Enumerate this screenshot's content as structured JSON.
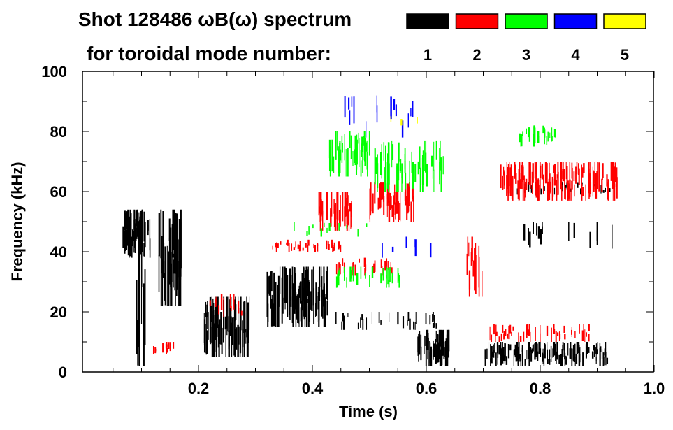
{
  "chart_data": {
    "type": "heatmap",
    "title_line1": "Shot 128486 ωB(ω) spectrum",
    "title_line2": "for toroidal mode number:",
    "xlabel": "Time (s)",
    "ylabel": "Frequency (kHz)",
    "xlim": [
      0.0,
      1.0
    ],
    "ylim": [
      0,
      100
    ],
    "xticks": [
      "0.2",
      "0.4",
      "0.6",
      "0.8",
      "1.0"
    ],
    "xtick_values": [
      0.2,
      0.4,
      0.6,
      0.8,
      1.0
    ],
    "yticks": [
      "0",
      "20",
      "40",
      "60",
      "80",
      "100"
    ],
    "ytick_values": [
      0,
      20,
      40,
      60,
      80,
      100
    ],
    "legend": [
      {
        "label": "1",
        "color": "#000000"
      },
      {
        "label": "2",
        "color": "#ff0000"
      },
      {
        "label": "3",
        "color": "#00ff00"
      },
      {
        "label": "4",
        "color": "#0000ff"
      },
      {
        "label": "5",
        "color": "#ffff00"
      }
    ],
    "legend_placement": "top-right",
    "features": [
      {
        "mode": 1,
        "t": [
          0.066,
          0.116
        ],
        "f": [
          38,
          54
        ],
        "density": 60
      },
      {
        "mode": 1,
        "t": [
          0.09,
          0.11
        ],
        "f": [
          2,
          45
        ],
        "density": 12
      },
      {
        "mode": 1,
        "t": [
          0.13,
          0.17
        ],
        "f": [
          22,
          54
        ],
        "density": 50
      },
      {
        "mode": 1,
        "t": [
          0.21,
          0.29
        ],
        "f": [
          5,
          25
        ],
        "density": 90
      },
      {
        "mode": 1,
        "t": [
          0.32,
          0.43
        ],
        "f": [
          15,
          35
        ],
        "density": 110
      },
      {
        "mode": 1,
        "t": [
          0.58,
          0.64
        ],
        "f": [
          2,
          14
        ],
        "density": 60
      },
      {
        "mode": 1,
        "t": [
          0.7,
          0.92
        ],
        "f": [
          2,
          10
        ],
        "density": 150
      },
      {
        "mode": 1,
        "t": [
          0.76,
          0.93
        ],
        "f": [
          59,
          63
        ],
        "density": 30
      },
      {
        "mode": 1,
        "t": [
          0.44,
          0.62
        ],
        "f": [
          14,
          20
        ],
        "density": 30
      },
      {
        "mode": 1,
        "t": [
          0.76,
          0.93
        ],
        "f": [
          40,
          50
        ],
        "density": 15
      },
      {
        "mode": 2,
        "t": [
          0.41,
          0.47
        ],
        "f": [
          47,
          60
        ],
        "density": 45
      },
      {
        "mode": 2,
        "t": [
          0.5,
          0.58
        ],
        "f": [
          50,
          63
        ],
        "density": 55
      },
      {
        "mode": 2,
        "t": [
          0.73,
          0.94
        ],
        "f": [
          57,
          70
        ],
        "density": 150
      },
      {
        "mode": 2,
        "t": [
          0.33,
          0.45
        ],
        "f": [
          40,
          44
        ],
        "density": 35
      },
      {
        "mode": 2,
        "t": [
          0.44,
          0.54
        ],
        "f": [
          32,
          38
        ],
        "density": 25
      },
      {
        "mode": 2,
        "t": [
          0.67,
          0.7
        ],
        "f": [
          25,
          45
        ],
        "density": 15
      },
      {
        "mode": 2,
        "t": [
          0.71,
          0.89
        ],
        "f": [
          10,
          16
        ],
        "density": 50
      },
      {
        "mode": 2,
        "t": [
          0.12,
          0.16
        ],
        "f": [
          6,
          10
        ],
        "density": 15
      },
      {
        "mode": 2,
        "t": [
          0.22,
          0.28
        ],
        "f": [
          18,
          26
        ],
        "density": 12
      },
      {
        "mode": 3,
        "t": [
          0.43,
          0.5
        ],
        "f": [
          65,
          80
        ],
        "density": 45
      },
      {
        "mode": 3,
        "t": [
          0.51,
          0.63
        ],
        "f": [
          60,
          77
        ],
        "density": 60
      },
      {
        "mode": 3,
        "t": [
          0.76,
          0.83
        ],
        "f": [
          75,
          82
        ],
        "density": 25
      },
      {
        "mode": 3,
        "t": [
          0.44,
          0.56
        ],
        "f": [
          28,
          35
        ],
        "density": 25
      },
      {
        "mode": 3,
        "t": [
          0.36,
          0.5
        ],
        "f": [
          45,
          50
        ],
        "density": 12
      },
      {
        "mode": 4,
        "t": [
          0.45,
          0.59
        ],
        "f": [
          78,
          92
        ],
        "density": 15
      },
      {
        "mode": 4,
        "t": [
          0.52,
          0.62
        ],
        "f": [
          38,
          45
        ],
        "density": 6
      },
      {
        "mode": 5,
        "t": [
          0.52,
          0.61
        ],
        "f": [
          82,
          86
        ],
        "density": 3
      }
    ]
  }
}
